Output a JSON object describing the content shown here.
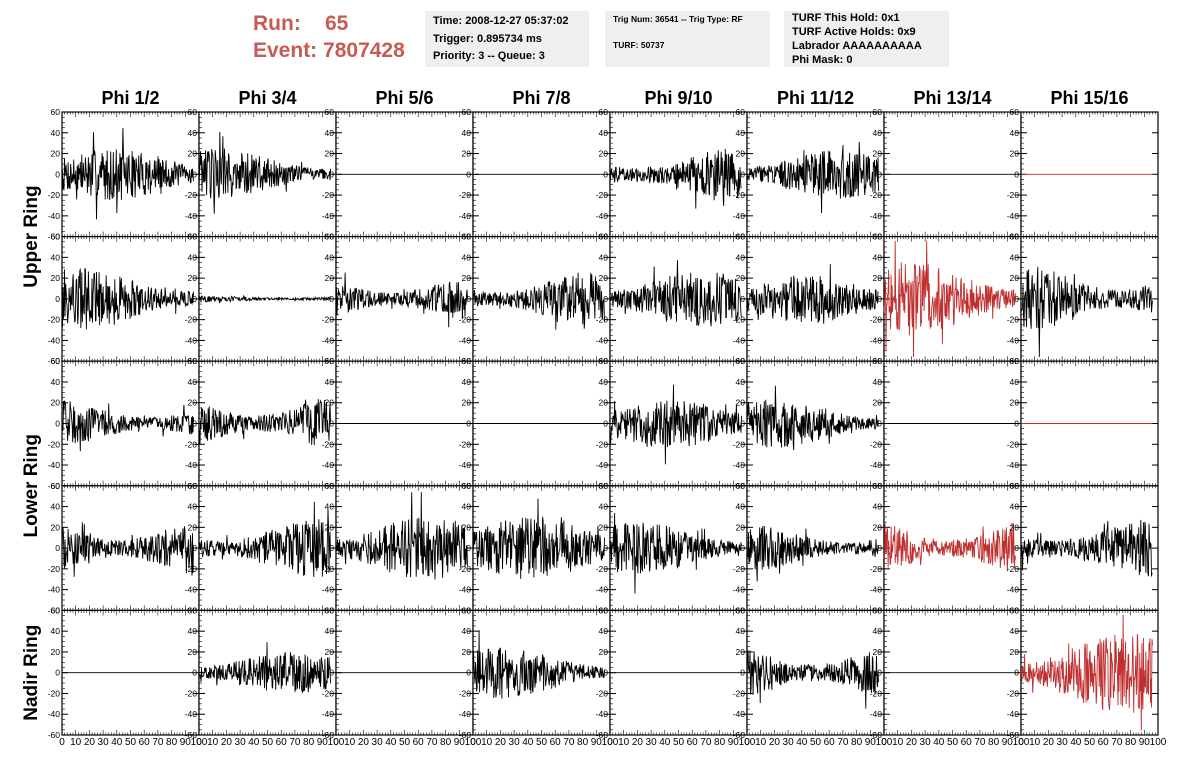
{
  "header": {
    "run_label": "Run:",
    "run_value": "65",
    "event_label": "Event:",
    "event_value": "7807428",
    "time_text": "Time: 2008-12-27 05:37:02",
    "trigger_text": "Trigger: 0.895734 ms",
    "priority_text": "Priority: 3 -- Queue: 3",
    "trig_num_text": "Trig Num: 36541 -- Trig Type: RF",
    "turf_text": "TURF: 50737",
    "turf_this_hold": "TURF This Hold: 0x1",
    "turf_active_holds": "TURF Active Holds: 0x9",
    "labrador": "Labrador AAAAAAAAAA",
    "phi_mask": "Phi Mask: 0"
  },
  "colors": {
    "trace": "#000000",
    "highlight": "#c03030",
    "accent_text": "#c85a55",
    "info_bg": "#efefef"
  },
  "chart_data": {
    "type": "line",
    "columns": [
      "Phi 1/2",
      "Phi 3/4",
      "Phi 5/6",
      "Phi 7/8",
      "Phi 9/10",
      "Phi 11/12",
      "Phi 13/14",
      "Phi 15/16"
    ],
    "ring_groups": [
      {
        "label": "Upper Ring",
        "rows": [
          0,
          1
        ]
      },
      {
        "label": "Lower Ring",
        "rows": [
          2,
          3
        ]
      },
      {
        "label": "Nadir Ring",
        "rows": [
          4
        ]
      }
    ],
    "ylim": [
      -60,
      60
    ],
    "y_ticks": [
      -60,
      -40,
      -20,
      0,
      20,
      40,
      60
    ],
    "xlim": [
      0,
      100
    ],
    "x_ticks": [
      0,
      10,
      20,
      30,
      40,
      50,
      60,
      70,
      80,
      90,
      100
    ],
    "samples_per_trace": 260,
    "traces": [
      [
        {
          "amp": 14,
          "color": "black"
        },
        {
          "amp": 14,
          "color": "black"
        },
        {
          "amp": 0,
          "color": "black"
        },
        {
          "amp": 0,
          "color": "black"
        },
        {
          "amp": 14,
          "color": "black"
        },
        {
          "amp": 13,
          "color": "black"
        },
        {
          "amp": 0,
          "color": "black"
        },
        {
          "amp": 0,
          "color": "red"
        }
      ],
      [
        {
          "amp": 17,
          "color": "black"
        },
        {
          "amp": 2,
          "color": "black"
        },
        {
          "amp": 14,
          "color": "black"
        },
        {
          "amp": 15,
          "color": "black"
        },
        {
          "amp": 15,
          "color": "black"
        },
        {
          "amp": 13,
          "color": "black"
        },
        {
          "amp": 20,
          "color": "red"
        },
        {
          "amp": 19,
          "color": "black"
        }
      ],
      [
        {
          "amp": 13,
          "color": "black"
        },
        {
          "amp": 17,
          "color": "black"
        },
        {
          "amp": 0,
          "color": "black"
        },
        {
          "amp": 0,
          "color": "black"
        },
        {
          "amp": 13,
          "color": "black"
        },
        {
          "amp": 13,
          "color": "black"
        },
        {
          "amp": 0,
          "color": "black"
        },
        {
          "amp": 0,
          "color": "red"
        }
      ],
      [
        {
          "amp": 17,
          "color": "black"
        },
        {
          "amp": 16,
          "color": "black"
        },
        {
          "amp": 17,
          "color": "black"
        },
        {
          "amp": 17,
          "color": "black"
        },
        {
          "amp": 14,
          "color": "black"
        },
        {
          "amp": 13,
          "color": "black"
        },
        {
          "amp": 18,
          "color": "red"
        },
        {
          "amp": 16,
          "color": "black"
        }
      ],
      [
        {
          "amp": 0,
          "color": "black"
        },
        {
          "amp": 11,
          "color": "black"
        },
        {
          "amp": 0,
          "color": "black"
        },
        {
          "amp": 14,
          "color": "black"
        },
        {
          "amp": 0,
          "color": "black"
        },
        {
          "amp": 17,
          "color": "black"
        },
        {
          "amp": 0,
          "color": "black"
        },
        {
          "amp": 22,
          "color": "red"
        }
      ]
    ]
  }
}
